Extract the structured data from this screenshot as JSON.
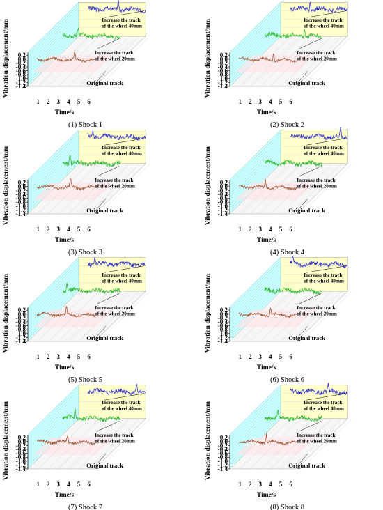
{
  "figure": {
    "y_label": "Vibration displacement/mm",
    "x_label": "Time/s",
    "y_ticks": [
      "0.2",
      "0.0",
      "-0.2",
      "-0.4",
      "-0.6",
      "-0.8",
      "-1.0",
      "-1.2",
      "-1.4"
    ],
    "x_ticks": [
      "1",
      "2",
      "3",
      "4",
      "5",
      "6"
    ],
    "series_labels": {
      "w40": [
        "Increase the track",
        "of the wheel 40mm"
      ],
      "w20": [
        "Increase the track",
        "of the wheel 20mm"
      ],
      "orig": "Original track"
    },
    "colors": {
      "w40": "#3333cc",
      "w20": "#33bb33",
      "orig": "#a0522d",
      "back_wall": "#ffffcc",
      "side_wall": "#ccffff",
      "floor": "#ffe6ea"
    }
  },
  "chart_data": [
    {
      "type": "line",
      "caption": "(1) Shock 1",
      "xlabel": "Time/s",
      "ylabel": "Vibration displacement/mm",
      "xlim": [
        0,
        7
      ],
      "ylim": [
        -1.4,
        0.2
      ],
      "series": [
        {
          "name": "Increase the track of the wheel 40mm",
          "seed": 11,
          "spike": 3.9
        },
        {
          "name": "Increase the track of the wheel 20mm",
          "seed": 12,
          "spike": 2.4
        },
        {
          "name": "Original track",
          "seed": 13,
          "spike": 4.6
        }
      ]
    },
    {
      "type": "line",
      "caption": "(2) Shock 2",
      "xlabel": "Time/s",
      "ylabel": "Vibration displacement/mm",
      "xlim": [
        0,
        7
      ],
      "ylim": [
        -1.4,
        0.2
      ],
      "series": [
        {
          "name": "Increase the track of the wheel 40mm",
          "seed": 21,
          "spike": 2.9
        },
        {
          "name": "Increase the track of the wheel 20mm",
          "seed": 22,
          "spike": 4.8
        },
        {
          "name": "Original track",
          "seed": 23,
          "spike": 4.3
        }
      ]
    },
    {
      "type": "line",
      "caption": "(3) Shock 3",
      "xlabel": "Time/s",
      "ylabel": "Vibration displacement/mm",
      "xlim": [
        0,
        7
      ],
      "ylim": [
        -1.4,
        0.2
      ],
      "series": [
        {
          "name": "Increase the track of the wheel 40mm",
          "seed": 31,
          "spike": 1.4
        },
        {
          "name": "Increase the track of the wheel 20mm",
          "seed": 32,
          "spike": 1.6
        },
        {
          "name": "Original track",
          "seed": 33,
          "spike": 4.2
        }
      ]
    },
    {
      "type": "line",
      "caption": "(4) Shock 4",
      "xlabel": "Time/s",
      "ylabel": "Vibration displacement/mm",
      "xlim": [
        0,
        7
      ],
      "ylim": [
        -1.4,
        0.2
      ],
      "series": [
        {
          "name": "Increase the track of the wheel 40mm",
          "seed": 41,
          "spike": 5.9
        },
        {
          "name": "Increase the track of the wheel 20mm",
          "seed": 42,
          "spike": 0.6
        },
        {
          "name": "Original track",
          "seed": 43,
          "spike": 3.5
        }
      ]
    },
    {
      "type": "line",
      "caption": "(5) Shock 5",
      "xlabel": "Time/s",
      "ylabel": "Vibration displacement/mm",
      "xlim": [
        0,
        7
      ],
      "ylim": [
        -1.4,
        0.2
      ],
      "series": [
        {
          "name": "Increase the track of the wheel 40mm",
          "seed": 51,
          "spike": 1.6
        },
        {
          "name": "Increase the track of the wheel 20mm",
          "seed": 52,
          "spike": 1.3
        },
        {
          "name": "Original track",
          "seed": 53,
          "spike": 3.8
        }
      ]
    },
    {
      "type": "line",
      "caption": "(6) Shock 6",
      "xlabel": "Time/s",
      "ylabel": "Vibration displacement/mm",
      "xlim": [
        0,
        7
      ],
      "ylim": [
        -1.4,
        0.2
      ],
      "series": [
        {
          "name": "Increase the track of the wheel 40mm",
          "seed": 61,
          "spike": 1.2
        },
        {
          "name": "Increase the track of the wheel 20mm",
          "seed": 62,
          "spike": 0.7
        },
        {
          "name": "Original track",
          "seed": 63,
          "spike": 4.0
        }
      ]
    },
    {
      "type": "line",
      "caption": "(7) Shock 7",
      "xlabel": "Time/s",
      "ylabel": "Vibration displacement/mm",
      "xlim": [
        0,
        7
      ],
      "ylim": [
        -1.4,
        0.2
      ],
      "series": [
        {
          "name": "Increase the track of the wheel 40mm",
          "seed": 71,
          "spike": 5.7
        },
        {
          "name": "Increase the track of the wheel 20mm",
          "seed": 72,
          "spike": 2.1
        },
        {
          "name": "Original track",
          "seed": 73,
          "spike": 3.9
        }
      ]
    },
    {
      "type": "line",
      "caption": "(8) Shock 8",
      "xlabel": "Time/s",
      "ylabel": "Vibration displacement/mm",
      "xlim": [
        0,
        7
      ],
      "ylim": [
        -1.4,
        0.2
      ],
      "series": [
        {
          "name": "Increase the track of the wheel 40mm",
          "seed": 81,
          "spike": 4.7
        },
        {
          "name": "Increase the track of the wheel 20mm",
          "seed": 82,
          "spike": 2.2
        },
        {
          "name": "Original track",
          "seed": 83,
          "spike": 3.6
        }
      ]
    }
  ]
}
